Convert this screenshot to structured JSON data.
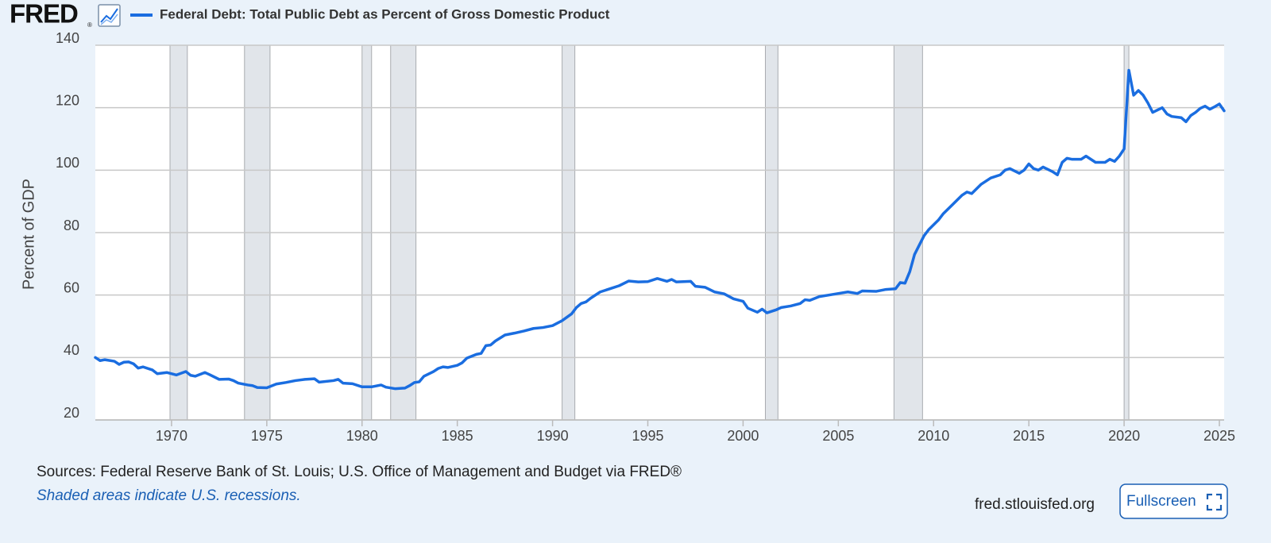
{
  "header": {
    "logo": "FRED",
    "logo_mark": "®"
  },
  "chart_data": {
    "type": "line",
    "y_label": "Percent of GDP",
    "x": [
      1966,
      1966.25,
      1966.5,
      1967,
      1967.25,
      1967.5,
      1967.75,
      1968,
      1968.25,
      1968.5,
      1969,
      1969.25,
      1969.75,
      1970.25,
      1970.75,
      1971,
      1971.25,
      1971.75,
      1972,
      1972.5,
      1973,
      1973.25,
      1973.5,
      1974,
      1974.25,
      1974.5,
      1975,
      1975.5,
      1976,
      1976.5,
      1977,
      1977.5,
      1977.75,
      1978.5,
      1978.75,
      1979,
      1979.5,
      1980,
      1980.5,
      1981,
      1981.25,
      1981.75,
      1982.25,
      1982.5,
      1982.75,
      1983,
      1983.25,
      1983.75,
      1984,
      1984.25,
      1984.5,
      1985,
      1985.25,
      1985.5,
      1986,
      1986.25,
      1986.5,
      1986.75,
      1987,
      1987.5,
      1988,
      1988.5,
      1989,
      1989.5,
      1990,
      1990.5,
      1991,
      1991.25,
      1991.5,
      1991.75,
      1992,
      1992.5,
      1993,
      1993.5,
      1994,
      1994.5,
      1995,
      1995.5,
      1996,
      1996.25,
      1996.5,
      1997.25,
      1997.5,
      1998,
      1998.5,
      1999,
      1999.5,
      2000,
      2000.25,
      2000.75,
      2001,
      2001.25,
      2001.75,
      2002,
      2002.5,
      2003,
      2003.25,
      2003.5,
      2004,
      2004.5,
      2005,
      2005.5,
      2006,
      2006.25,
      2007,
      2007.5,
      2008,
      2008.25,
      2008.5,
      2008.75,
      2009,
      2009.25,
      2009.5,
      2009.75,
      2010.25,
      2010.5,
      2011,
      2011.5,
      2011.75,
      2012,
      2012.5,
      2013,
      2013.5,
      2013.75,
      2014,
      2014.5,
      2014.75,
      2015,
      2015.25,
      2015.5,
      2015.75,
      2016.25,
      2016.5,
      2016.75,
      2017,
      2017.25,
      2017.75,
      2018,
      2018.5,
      2019,
      2019.25,
      2019.5,
      2019.75,
      2020,
      2020.25,
      2020.5,
      2020.75,
      2021,
      2021.25,
      2021.5,
      2022,
      2022.25,
      2022.5,
      2023,
      2023.25,
      2023.5,
      2023.75,
      2024,
      2024.25,
      2024.5,
      2024.75,
      2025,
      2025.25
    ],
    "series": [
      {
        "name": "Federal Debt: Total Public Debt as Percent of Gross Domestic Product",
        "color": "#1a6de0",
        "values": [
          40,
          39,
          39.3,
          38.8,
          37.8,
          38.5,
          38.6,
          38,
          36.6,
          37,
          36,
          34.8,
          35.2,
          34.4,
          35.5,
          34.3,
          34,
          35.2,
          34.5,
          33,
          33.1,
          32.6,
          31.8,
          31.2,
          31,
          30.4,
          30.3,
          31.5,
          32,
          32.6,
          33,
          33.2,
          32.1,
          32.6,
          33,
          31.8,
          31.6,
          30.6,
          30.6,
          31.2,
          30.5,
          30,
          30.2,
          31,
          32,
          32.2,
          34,
          35.5,
          36.5,
          37,
          36.8,
          37.5,
          38.3,
          39.8,
          41,
          41.3,
          43.8,
          44,
          45.3,
          47.2,
          47.8,
          48.5,
          49.3,
          49.6,
          50.2,
          51.8,
          54,
          56,
          57.3,
          57.8,
          59,
          61,
          62,
          63,
          64.5,
          64.2,
          64.3,
          65.3,
          64.4,
          65,
          64.2,
          64.4,
          62.8,
          62.5,
          61,
          60.4,
          58.8,
          58,
          55.8,
          54.5,
          55.5,
          54.3,
          55.3,
          56,
          56.5,
          57.3,
          58.5,
          58.3,
          59.5,
          60,
          60.5,
          61,
          60.5,
          61.3,
          61.2,
          61.8,
          62,
          64,
          63.8,
          67.5,
          73,
          76,
          79,
          81,
          84,
          86,
          89,
          92,
          93,
          92.5,
          95.5,
          97.5,
          98.5,
          100,
          100.5,
          99,
          100,
          102,
          100.5,
          100,
          101,
          99.5,
          98.5,
          102.5,
          103.8,
          103.5,
          103.5,
          104.5,
          102.5,
          102.5,
          103.5,
          102.8,
          104.5,
          106.8,
          132,
          124,
          125.5,
          124,
          121.5,
          118.5,
          120,
          118,
          117.2,
          116.8,
          115.5,
          117.5,
          118.5,
          119.8,
          120.5,
          119.5,
          120.3,
          121.2,
          119
        ]
      }
    ],
    "xlim": [
      1966,
      2025.25
    ],
    "xticks": [
      1970,
      1975,
      1980,
      1985,
      1990,
      1995,
      2000,
      2005,
      2010,
      2015,
      2020,
      2025
    ],
    "ylim": [
      20,
      140
    ],
    "yticks": [
      20,
      40,
      60,
      80,
      100,
      120,
      140
    ],
    "grid": true,
    "recessions": [
      [
        1969.92,
        1970.83
      ],
      [
        1973.83,
        1975.17
      ],
      [
        1980,
        1980.5
      ],
      [
        1981.5,
        1982.83
      ],
      [
        1990.5,
        1991.17
      ],
      [
        2001.17,
        2001.83
      ],
      [
        2007.92,
        2009.42
      ],
      [
        2020,
        2020.25
      ]
    ],
    "recession_color": "#e1e5ea"
  },
  "footer": {
    "sources": "Sources: Federal Reserve Bank of St. Louis; U.S. Office of Management and Budget via FRED®",
    "note": "Shaded areas indicate U.S. recessions.",
    "site": "fred.stlouisfed.org",
    "button": "Fullscreen"
  }
}
